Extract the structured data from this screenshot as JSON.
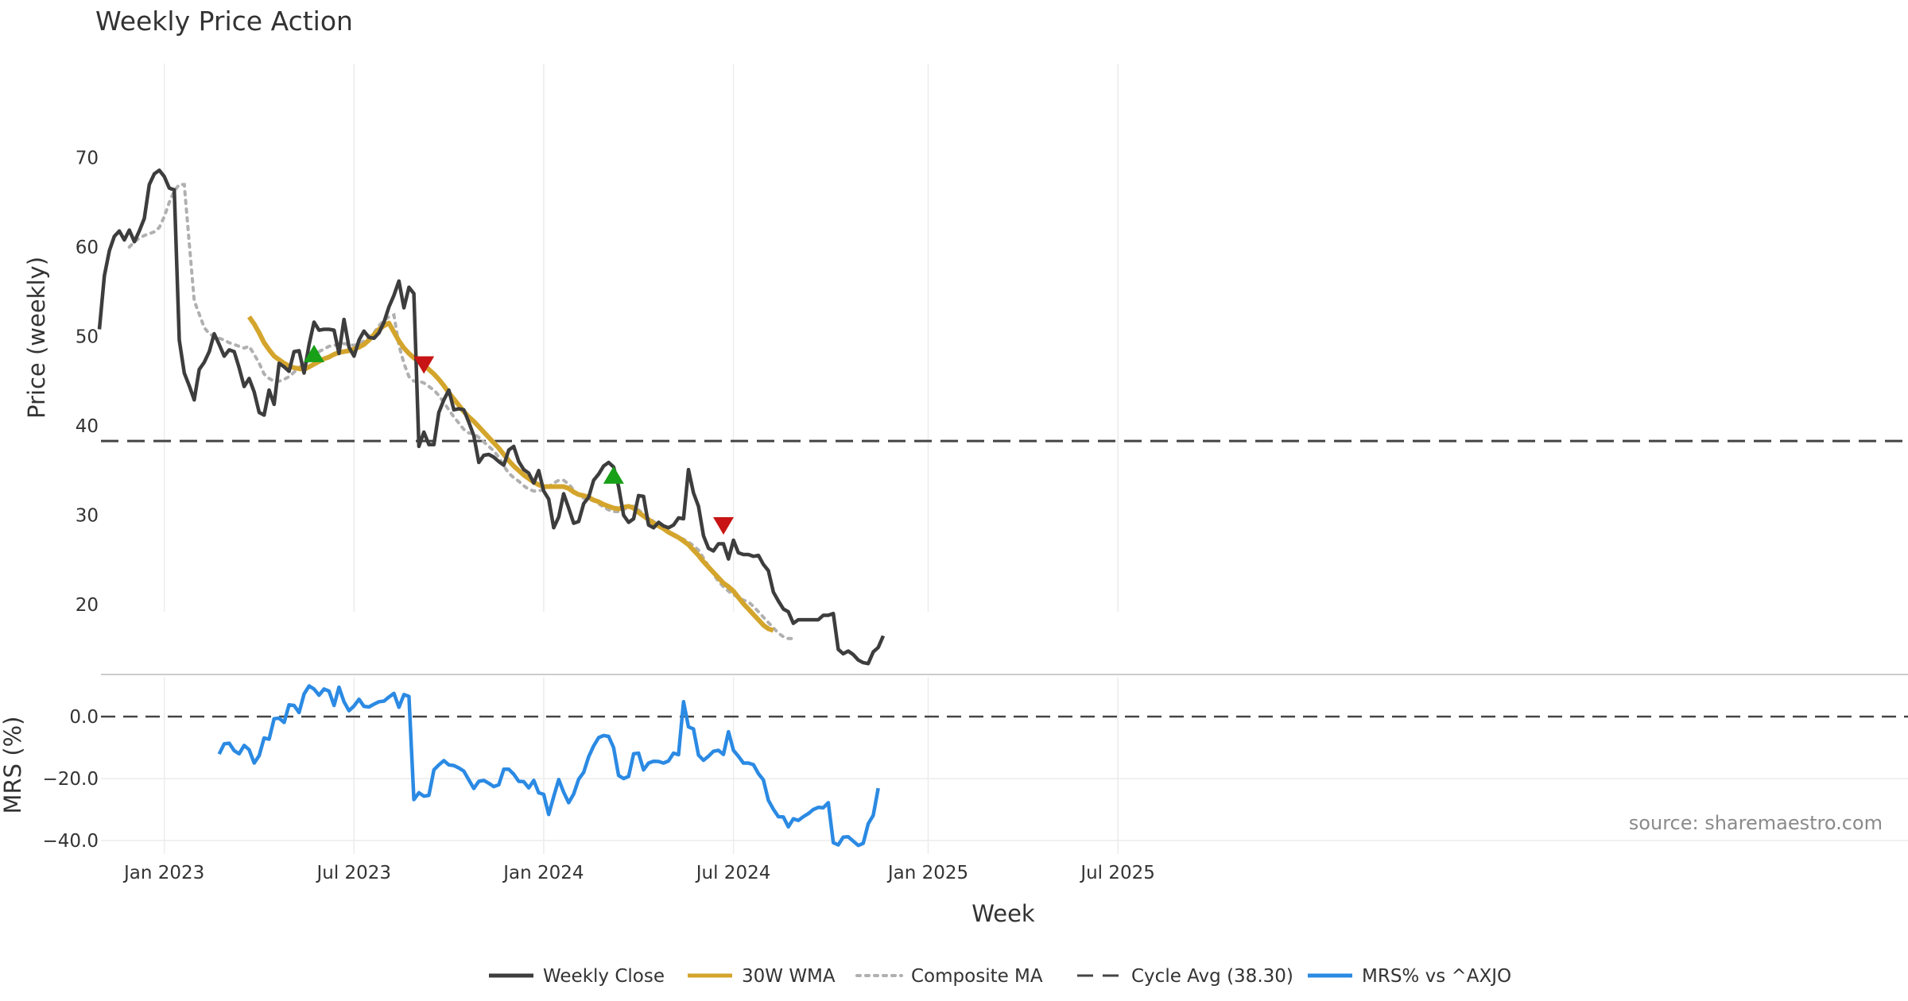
{
  "chart_data": {
    "type": "line",
    "title": "Weekly Price Action",
    "xlabel": "Week",
    "source_note": "source: sharemaestro.com",
    "colors": {
      "weekly_close": "#3d3d3d",
      "wma": "#d4a52c",
      "composite": "#b0b0b0",
      "cycle": "#444444",
      "mrs": "#2b8ae3",
      "buy_marker": "#18a018",
      "sell_marker": "#c81414",
      "grid": "#ececec"
    },
    "x_ticks": [
      "Jan 2023",
      "Jul 2023",
      "Jan 2024",
      "Jul 2024",
      "Jan 2025",
      "Jul 2025"
    ],
    "price_panel": {
      "ylabel": "Price (weekly)",
      "ylim": [
        10,
        72
      ],
      "yticks": [
        "70",
        "60",
        "50",
        "40",
        "30",
        "20"
      ],
      "ytick_values": [
        70,
        60,
        50,
        40,
        30,
        20
      ],
      "cycle_avg": 38.3,
      "series": [
        {
          "name": "Weekly Close",
          "values": [
            50.8,
            56.8,
            59.6,
            61.2,
            61.8,
            60.8,
            61.9,
            60.6,
            61.8,
            63.2,
            67.0,
            68.2,
            68.6,
            67.9,
            66.6,
            66.4,
            49.6,
            45.9,
            44.5,
            42.9,
            46.3,
            47.1,
            48.3,
            50.3,
            49.1,
            47.8,
            48.5,
            48.3,
            46.5,
            44.4,
            45.3,
            43.8,
            41.5,
            41.2,
            44.0,
            42.4,
            47.0,
            46.6,
            46.1,
            48.3,
            48.4,
            45.9,
            49.1,
            51.6,
            50.7,
            50.8,
            50.8,
            50.7,
            48.1,
            51.9,
            48.8,
            47.8,
            49.6,
            50.6,
            49.9,
            49.8,
            50.4,
            51.6,
            53.3,
            54.6,
            56.2,
            53.2,
            55.5,
            54.8,
            37.7,
            39.3,
            37.9,
            37.9,
            41.5,
            42.9,
            44.0,
            41.8,
            41.9,
            41.8,
            40.4,
            38.9,
            35.9,
            36.7,
            36.8,
            36.5,
            36.0,
            35.6,
            37.3,
            37.7,
            36.0,
            35.1,
            34.7,
            33.6,
            35.0,
            32.7,
            31.8,
            28.6,
            29.8,
            32.4,
            30.8,
            29.1,
            29.3,
            31.3,
            32.0,
            33.9,
            34.6,
            35.5,
            35.9,
            35.4,
            33.2,
            30.0,
            29.2,
            29.6,
            32.2,
            32.1,
            28.9,
            28.6,
            29.2,
            28.8,
            28.6,
            28.9,
            29.7,
            29.6,
            35.1,
            32.5,
            31.0,
            27.7,
            26.3,
            26.0,
            26.8,
            26.8,
            25.1,
            27.2,
            25.8,
            25.6,
            25.6,
            25.4,
            25.5,
            24.5,
            23.8,
            21.4,
            20.4,
            19.5,
            19.2,
            17.9,
            18.3,
            18.3,
            18.3,
            18.3,
            18.3,
            18.8,
            18.8,
            19.0,
            15.0,
            14.5,
            14.8,
            14.4,
            13.8,
            13.5,
            13.4,
            14.7,
            15.2,
            16.5
          ]
        },
        {
          "name": "30W WMA",
          "start_week": 30,
          "values": [
            52.2,
            51.4,
            50.4,
            49.3,
            48.5,
            47.8,
            47.4,
            47.0,
            46.7,
            46.5,
            46.4,
            46.3,
            46.6,
            46.9,
            47.2,
            47.5,
            47.7,
            48.0,
            48.2,
            48.3,
            48.4,
            48.6,
            48.8,
            49.1,
            49.6,
            50.2,
            50.8,
            51.2,
            51.5,
            50.5,
            49.5,
            48.7,
            48.1,
            47.6,
            47.2,
            46.8,
            46.3,
            45.8,
            45.2,
            44.5,
            43.7,
            43.0,
            42.3,
            41.6,
            41.0,
            40.5,
            39.9,
            39.3,
            38.7,
            38.1,
            37.5,
            36.8,
            36.1,
            35.5,
            35.0,
            34.5,
            34.1,
            33.7,
            33.4,
            33.2,
            33.2,
            33.2,
            33.2,
            33.2,
            33.0,
            32.6,
            32.3,
            32.2,
            32.0,
            31.7,
            31.5,
            31.2,
            31.0,
            30.8,
            30.7,
            30.9,
            31.0,
            30.8,
            30.3,
            29.9,
            29.5,
            29.1,
            28.8,
            28.5,
            28.1,
            27.8,
            27.5,
            27.1,
            26.7,
            26.1,
            25.5,
            24.8,
            24.2,
            23.6,
            23.0,
            22.4,
            22.0,
            21.5,
            20.8,
            20.1,
            19.5,
            18.9,
            18.3,
            17.7,
            17.3,
            17.1
          ]
        },
        {
          "name": "Composite MA",
          "start_week": 6,
          "values": [
            60.0,
            60.6,
            61.0,
            61.3,
            61.5,
            61.7,
            62.2,
            63.4,
            65.0,
            66.3,
            67.0,
            67.0,
            60.5,
            54.0,
            52.5,
            51.0,
            50.3,
            50.0,
            49.8,
            49.6,
            49.3,
            49.1,
            48.9,
            48.7,
            48.9,
            48.0,
            47.0,
            45.8,
            45.3,
            45.0,
            45.0,
            45.2,
            45.5,
            46.0,
            46.5,
            47.0,
            47.3,
            47.8,
            48.3,
            48.6,
            48.9,
            49.0,
            49.1,
            49.2,
            49.1,
            49.0,
            49.2,
            49.5,
            49.9,
            50.4,
            51.2,
            51.8,
            52.2,
            52.4,
            49.0,
            47.0,
            45.5,
            45.0,
            45.0,
            44.8,
            44.4,
            44.0,
            43.4,
            42.6,
            41.8,
            41.0,
            40.3,
            39.6,
            39.2,
            39.1,
            38.7,
            38.2,
            37.7,
            37.2,
            36.5,
            35.5,
            34.7,
            34.2,
            33.8,
            33.3,
            32.9,
            32.7,
            32.7,
            32.9,
            33.2,
            33.6,
            33.9,
            33.9,
            33.5,
            32.8,
            32.3,
            31.9,
            31.8,
            31.6,
            31.3,
            30.9,
            30.6,
            30.4,
            30.4,
            30.6,
            31.0,
            31.0,
            30.6,
            30.1,
            29.7,
            29.3,
            28.9,
            28.5,
            28.2,
            27.9,
            27.6,
            27.3,
            27.0,
            26.6,
            26.1,
            25.2,
            24.3,
            23.4,
            22.6,
            22.0,
            21.5,
            21.1,
            20.8,
            20.5,
            20.3,
            19.8,
            19.2,
            18.6,
            18.0,
            17.4,
            16.8,
            16.4,
            16.2,
            16.2
          ]
        }
      ],
      "markers": [
        {
          "type": "buy",
          "week": 43,
          "value": 48.1
        },
        {
          "type": "sell",
          "week": 65,
          "value": 46.8
        },
        {
          "type": "buy",
          "week": 103,
          "value": 34.5
        },
        {
          "type": "sell",
          "week": 125,
          "value": 28.8
        }
      ]
    },
    "mrs_panel": {
      "ylabel": "MRS (%)",
      "ylim": [
        -44,
        12
      ],
      "yticks": [
        "0.0",
        "−20.0",
        "−40.0"
      ],
      "ytick_values": [
        0,
        -20,
        -40
      ],
      "zero_line": 0.0,
      "series": [
        {
          "name": "MRS% vs ^AXJO",
          "start_week": 24,
          "values": [
            -12.1,
            -8.8,
            -8.6,
            -11.0,
            -12.0,
            -9.3,
            -10.7,
            -15.0,
            -12.6,
            -6.9,
            -7.3,
            -0.7,
            -0.5,
            -1.9,
            3.8,
            3.6,
            1.3,
            7.3,
            9.9,
            8.9,
            6.9,
            8.9,
            8.2,
            3.6,
            9.5,
            4.8,
            1.9,
            3.4,
            5.6,
            3.3,
            3.1,
            4.0,
            4.8,
            5.0,
            6.3,
            7.5,
            3.0,
            7.1,
            6.5,
            -26.8,
            -24.6,
            -25.7,
            -25.4,
            -17.2,
            -15.6,
            -14.2,
            -15.6,
            -15.8,
            -16.6,
            -17.6,
            -20.4,
            -23.2,
            -20.9,
            -20.6,
            -21.5,
            -22.6,
            -22.0,
            -17.0,
            -17.0,
            -18.6,
            -20.9,
            -21.0,
            -23.0,
            -20.6,
            -24.6,
            -25.1,
            -31.6,
            -25.8,
            -20.3,
            -24.4,
            -27.8,
            -25.0,
            -20.2,
            -18.0,
            -13.0,
            -9.5,
            -6.8,
            -6.1,
            -6.4,
            -10.0,
            -19.0,
            -20.0,
            -19.3,
            -12.0,
            -11.8,
            -17.2,
            -15.0,
            -14.4,
            -14.5,
            -15.0,
            -14.3,
            -11.8,
            -12.3,
            4.8,
            -3.3,
            -4.0,
            -12.4,
            -14.1,
            -12.8,
            -11.2,
            -10.9,
            -12.2,
            -4.9,
            -10.9,
            -12.8,
            -15.0,
            -15.0,
            -15.5,
            -18.4,
            -20.4,
            -27.0,
            -29.9,
            -32.3,
            -32.4,
            -35.6,
            -33.0,
            -33.5,
            -32.3,
            -31.3,
            -30.0,
            -29.3,
            -29.4,
            -27.8,
            -40.7,
            -41.4,
            -38.9,
            -38.8,
            -40.2,
            -41.6,
            -40.9,
            -34.6,
            -31.9,
            -23.1
          ]
        }
      ]
    },
    "legend": [
      {
        "label": "Weekly Close",
        "style": "solid-dark"
      },
      {
        "label": "30W WMA",
        "style": "solid-gold"
      },
      {
        "label": "Composite MA",
        "style": "dotted-grey"
      },
      {
        "label": "Cycle Avg (38.30)",
        "style": "dashed-dark"
      },
      {
        "label": "MRS% vs ^AXJO",
        "style": "solid-blue"
      }
    ],
    "legend_placement": "bottom-center"
  }
}
